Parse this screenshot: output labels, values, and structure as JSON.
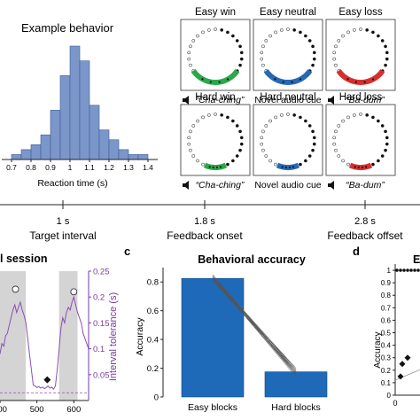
{
  "histogram": {
    "title": "Example behavior",
    "xlabel": "Reaction time (s)",
    "bar_color": "#7b96c8",
    "edge_color": "#3d5b9a"
  },
  "feedback_panels": [
    {
      "label": "Easy win",
      "caption": "“Cha-ching”",
      "arc_color": "#2aa84a",
      "italic": true,
      "speaker": true,
      "level": "easy"
    },
    {
      "label": "Easy neutral",
      "caption": "Novel audio cue",
      "arc_color": "#2769b5",
      "italic": false,
      "speaker": false,
      "level": "easy"
    },
    {
      "label": "Easy loss",
      "caption": "“Ba-dum”",
      "arc_color": "#d72e2e",
      "italic": true,
      "speaker": true,
      "level": "easy"
    },
    {
      "label": "Hard win",
      "caption": "“Cha-ching”",
      "arc_color": "#2aa84a",
      "italic": true,
      "speaker": true,
      "level": "hard"
    },
    {
      "label": "Hard neutral",
      "caption": "Novel audio cue",
      "arc_color": "#2769b5",
      "italic": false,
      "speaker": false,
      "level": "hard"
    },
    {
      "label": "Hard loss",
      "caption": "“Ba-dum”",
      "arc_color": "#d72e2e",
      "italic": true,
      "speaker": true,
      "level": "hard"
    }
  ],
  "timeline": {
    "events": [
      {
        "time": "1 s",
        "label": "Target interval"
      },
      {
        "time": "1.8 s",
        "label": "Feedback onset"
      },
      {
        "time": "2.8 s",
        "label": "Feedback offset"
      }
    ]
  },
  "session": {
    "title_fragment": "l session",
    "ylabel": "Interval tolerance (s)",
    "ylabel_color": "#7a3aa0",
    "trace_color": "#8a4fb5"
  },
  "panel_c": {
    "letter": "c",
    "title": "Behavioral accuracy",
    "bar_color": "#1f6ab8"
  },
  "panel_d": {
    "letter": "d",
    "title_fragment": "E",
    "ylabel": "Accuracy"
  },
  "chart_data": [
    {
      "type": "bar",
      "id": "reaction-time-histogram",
      "title": "Example behavior",
      "xlabel": "Reaction time (s)",
      "ylabel": "",
      "xlim": [
        0.65,
        1.45
      ],
      "tick_values": [
        0.7,
        0.8,
        0.9,
        1.0,
        1.1,
        1.2,
        1.3,
        1.4
      ],
      "tick_labels": [
        "0.7",
        "0.8",
        "0.9",
        "1",
        "1.1",
        "1.2",
        "1.3",
        "1.4"
      ],
      "bin_width": 0.05,
      "bin_starts": [
        0.7,
        0.75,
        0.8,
        0.85,
        0.9,
        0.95,
        1.0,
        1.05,
        1.1,
        1.15,
        1.2,
        1.25,
        1.3,
        1.35
      ],
      "counts": [
        1,
        2,
        3,
        5,
        10,
        17,
        23,
        20,
        11,
        6,
        4,
        2,
        1,
        1
      ]
    },
    {
      "type": "line",
      "id": "session-interval-tolerance",
      "xlabel": "",
      "ylabel": "Interval tolerance (s)",
      "xlim": [
        400,
        640
      ],
      "ylim": [
        0,
        0.25
      ],
      "x_tick_labels": [
        "400",
        "500",
        "600"
      ],
      "x_tick_values": [
        400,
        500,
        600
      ],
      "y_tick_values": [
        0.05,
        0.1,
        0.15,
        0.2,
        0.25
      ],
      "y_tick_labels": [
        "0.05",
        "0.1",
        "0.15",
        "0.2",
        "0.25"
      ],
      "shaded_blocks": [
        [
          400,
          470
        ],
        [
          560,
          610
        ]
      ],
      "dashed_level": 0.015,
      "circle_markers": [
        {
          "x": 442,
          "y": 0.215
        },
        {
          "x": 600,
          "y": 0.21
        }
      ],
      "diamond_markers": [
        {
          "x": 528,
          "y": 0.04
        }
      ],
      "series": [
        {
          "x": [
            400,
            405,
            410,
            415,
            420,
            425,
            430,
            435,
            440,
            445,
            450,
            455,
            460,
            465,
            470,
            475,
            480,
            485,
            490,
            495,
            500,
            505,
            510,
            515,
            520,
            525,
            530,
            535,
            540,
            545,
            550,
            555,
            560,
            565,
            570,
            575,
            580,
            585,
            590,
            595,
            600,
            605,
            610,
            615,
            620,
            625,
            630,
            635,
            640
          ],
          "y": [
            0.09,
            0.11,
            0.105,
            0.125,
            0.13,
            0.145,
            0.16,
            0.175,
            0.185,
            0.17,
            0.18,
            0.19,
            0.175,
            0.165,
            0.15,
            0.12,
            0.09,
            0.06,
            0.03,
            0.028,
            0.025,
            0.027,
            0.024,
            0.026,
            0.023,
            0.025,
            0.028,
            0.024,
            0.026,
            0.022,
            0.028,
            0.06,
            0.1,
            0.14,
            0.16,
            0.15,
            0.17,
            0.18,
            0.175,
            0.19,
            0.2,
            0.185,
            0.17,
            0.16,
            0.15,
            0.13,
            0.12,
            0.11,
            0.1
          ]
        }
      ]
    },
    {
      "type": "bar",
      "id": "behavioral-accuracy",
      "title": "Behavioral accuracy",
      "xlabel": "",
      "ylabel": "Accuracy",
      "categories": [
        "Easy blocks",
        "Hard blocks"
      ],
      "values": [
        0.825,
        0.175
      ],
      "ylim": [
        0,
        0.9
      ],
      "y_tick_values": [
        0,
        0.2,
        0.4,
        0.6,
        0.8
      ],
      "y_tick_labels": [
        "0",
        "0.2",
        "0.4",
        "0.6",
        "0.8"
      ],
      "individual_lines": [
        [
          0.85,
          0.18
        ],
        [
          0.84,
          0.17
        ],
        [
          0.83,
          0.19
        ],
        [
          0.82,
          0.16
        ],
        [
          0.84,
          0.2
        ],
        [
          0.83,
          0.15
        ],
        [
          0.82,
          0.18
        ],
        [
          0.81,
          0.17
        ],
        [
          0.85,
          0.16
        ],
        [
          0.83,
          0.19
        ],
        [
          0.82,
          0.2
        ],
        [
          0.84,
          0.15
        ],
        [
          0.81,
          0.18
        ],
        [
          0.83,
          0.17
        ],
        [
          0.82,
          0.16
        ],
        [
          0.84,
          0.19
        ],
        [
          0.81,
          0.2
        ],
        [
          0.83,
          0.14
        ],
        [
          0.85,
          0.17
        ],
        [
          0.82,
          0.18
        ]
      ]
    },
    {
      "type": "scatter",
      "id": "accuracy-scatter",
      "ylabel": "Accuracy",
      "ylim": [
        0,
        1.05
      ],
      "y_tick_values": [
        0,
        0.1,
        0.2,
        0.3,
        0.4,
        0.5,
        0.6,
        0.7,
        0.8,
        0.9,
        1
      ],
      "y_tick_labels": [
        "0",
        "0.1",
        "0.2",
        "0.3",
        "0.4",
        "0.5",
        "0.6",
        "0.7",
        "0.8",
        "0.9",
        "1"
      ],
      "x_tick_labels": [
        "0"
      ],
      "top_points_y": 1.0,
      "top_points_count": 7,
      "diamond_points": [
        {
          "y": 0.3
        },
        {
          "y": 0.25
        },
        {
          "y": 0.15
        }
      ],
      "fit_line": [
        [
          0,
          0.12
        ],
        [
          1,
          0.24
        ]
      ]
    }
  ]
}
